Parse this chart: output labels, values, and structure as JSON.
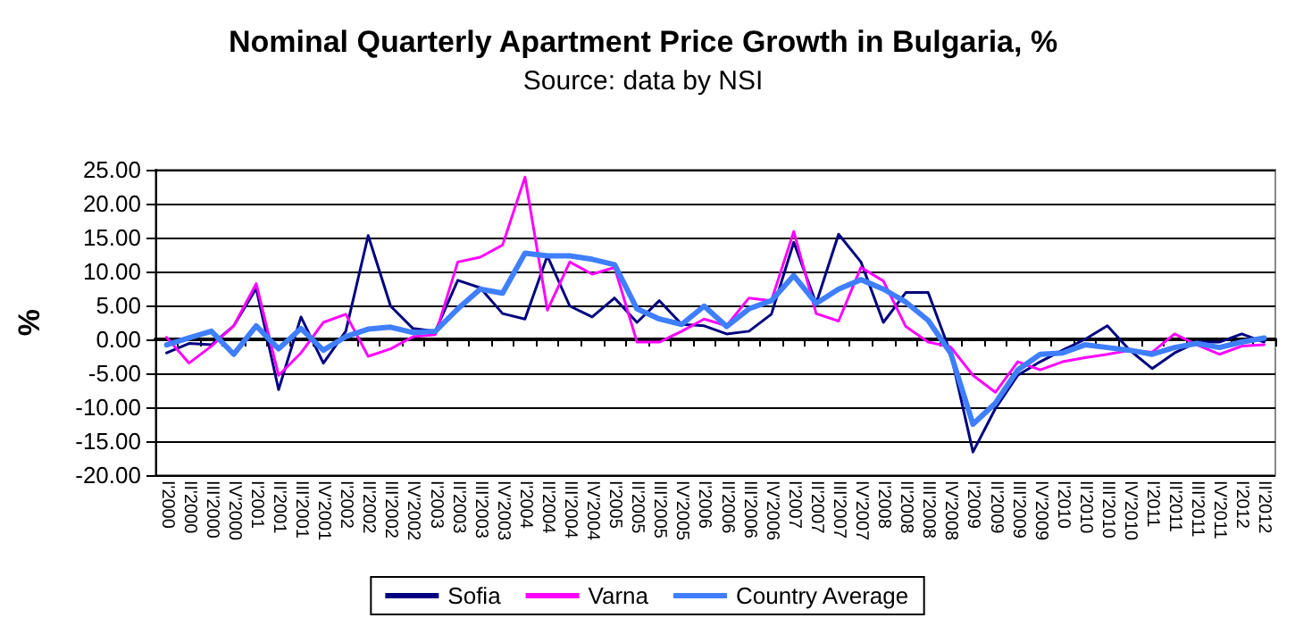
{
  "chart_data": {
    "type": "line",
    "title": "Nominal Quarterly Apartment Price Growth in Bulgaria, %",
    "subtitle": "Source: data by NSI",
    "ylabel": "%",
    "categories": [
      "I'2000",
      "II'2000",
      "III'2000",
      "IV'2000",
      "I'2001",
      "II'2001",
      "III'2001",
      "IV'2001",
      "I'2002",
      "II'2002",
      "III'2002",
      "IV'2002",
      "I'2003",
      "II'2003",
      "III'2003",
      "IV'2003",
      "I'2004",
      "II'2004",
      "III'2004",
      "IV'2004",
      "I'2005",
      "II'2005",
      "III'2005",
      "IV'2005",
      "I'2006",
      "II'2006",
      "III'2006",
      "IV'2006",
      "I'2007",
      "II'2007",
      "III'2007",
      "IV'2007",
      "I'2008",
      "II'2008",
      "III'2008",
      "IV'2008",
      "I'2009",
      "II'2009",
      "III'2009",
      "IV'2009",
      "I'2010",
      "II'2010",
      "III'2010",
      "IV'2010",
      "I'2011",
      "II'2011",
      "III'2011",
      "IV'2011",
      "I'2012",
      "II'2012"
    ],
    "series": [
      {
        "name": "Sofia",
        "color": "#000080",
        "values": [
          -2,
          -0.6,
          -0.8,
          2,
          7.5,
          -7.4,
          3.3,
          -3.5,
          1.2,
          15.3,
          4.9,
          1.6,
          1.2,
          8.7,
          7.6,
          3.8,
          3,
          12.3,
          4.9,
          3.3,
          6.1,
          2.5,
          5.7,
          2.2,
          2,
          0.8,
          1.2,
          3.7,
          14.3,
          5.3,
          15.5,
          11.4,
          2.5,
          6.9,
          6.9,
          -2,
          -16.6,
          -10.2,
          -5.3,
          -3.3,
          -1.6,
          0,
          2,
          -1.6,
          -4.3,
          -2,
          -0.4,
          -0.4,
          0.8,
          -0.4
        ]
      },
      {
        "name": "Varna",
        "color": "#ff00ff",
        "values": [
          0.3,
          -3.5,
          -1,
          2,
          8.2,
          -5.3,
          -2,
          2.5,
          3.7,
          -2.5,
          -1.4,
          0.4,
          0.7,
          11.4,
          12.1,
          13.9,
          23.9,
          4.3,
          11.4,
          9.6,
          10.6,
          -0.4,
          -0.4,
          1.2,
          3,
          2,
          6.1,
          5.7,
          15.9,
          3.8,
          2.7,
          10.6,
          8.6,
          1.9,
          -0.4,
          -1.1,
          -5.3,
          -7.8,
          -3.3,
          -4.5,
          -3.3,
          -2.7,
          -2.2,
          -1.6,
          -1.9,
          0.8,
          -0.8,
          -2.2,
          -1,
          -0.8
        ]
      },
      {
        "name": "Country Average",
        "color": "#3f7fff",
        "values": [
          -0.8,
          0.2,
          1.2,
          -2.2,
          2,
          -1.4,
          1.6,
          -1.6,
          0.4,
          1.5,
          1.8,
          1,
          1.2,
          4.5,
          7.4,
          6.8,
          12.7,
          12.3,
          12.3,
          11.8,
          11,
          4.5,
          3,
          2.2,
          4.9,
          1.9,
          4.5,
          5.7,
          9.4,
          5.3,
          7.4,
          8.8,
          7.4,
          5.5,
          2.8,
          -2,
          -12.5,
          -9.4,
          -4.5,
          -2.2,
          -2,
          -0.8,
          -1.2,
          -1.6,
          -2.2,
          -1.2,
          -0.6,
          -1.2,
          -0.4,
          0.2
        ]
      }
    ],
    "ylim": [
      -20,
      25
    ],
    "yticks": [
      {
        "value": -20,
        "label": "-20.00"
      },
      {
        "value": -15,
        "label": "-15.00"
      },
      {
        "value": -10,
        "label": "-10.00"
      },
      {
        "value": -5,
        "label": "-5.00"
      },
      {
        "value": 0,
        "label": "0.00"
      },
      {
        "value": 5,
        "label": "5.00"
      },
      {
        "value": 10,
        "label": "10.00"
      },
      {
        "value": 15,
        "label": "15.00"
      },
      {
        "value": 20,
        "label": "20.00"
      },
      {
        "value": 25,
        "label": "25.00"
      }
    ],
    "grid": "y",
    "legend": "bottom",
    "marker": "none",
    "line_style": "solid"
  }
}
